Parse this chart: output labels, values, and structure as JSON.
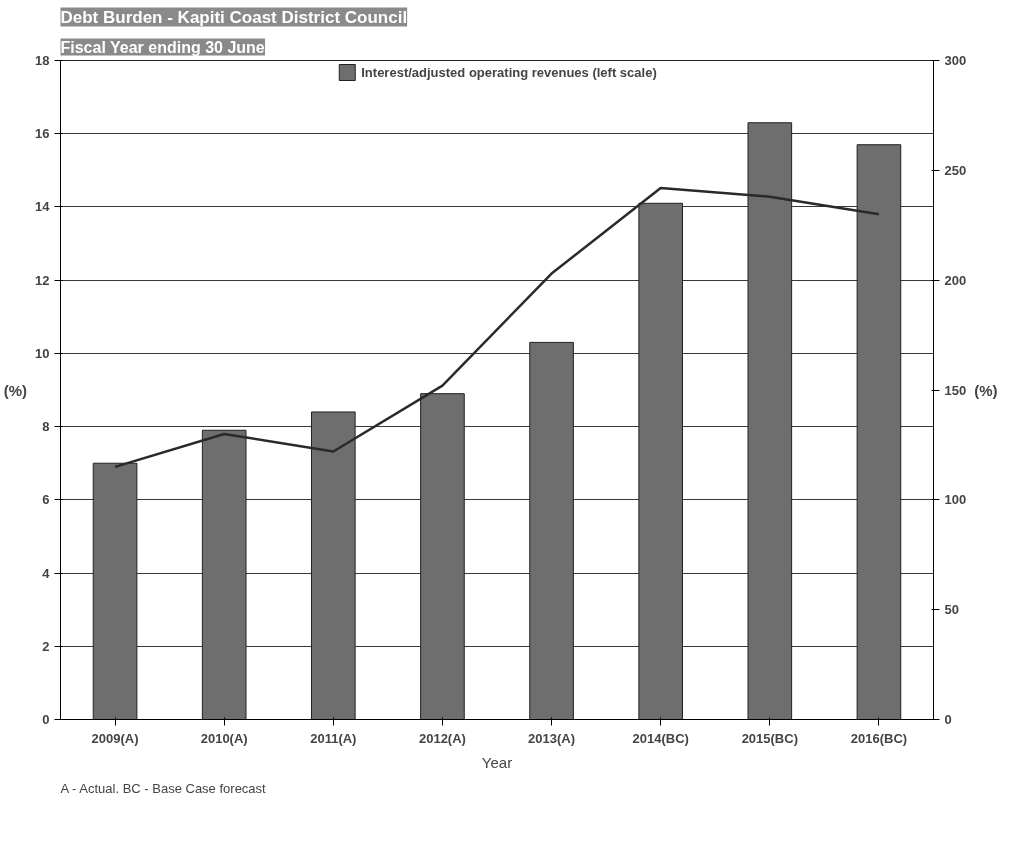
{
  "chart_data": {
    "type": "bar",
    "title": "Debt Burden - Kapiti Coast District Council",
    "subtitle": "Fiscal Year ending 30 June",
    "xlabel": "Year",
    "ylabel": "(%)",
    "y2label": "(%)",
    "categories": [
      "2009(A)",
      "2010(A)",
      "2011(A)",
      "2012(A)",
      "2013(A)",
      "2014(BC)",
      "2015(BC)",
      "2016(BC)"
    ],
    "series": [
      {
        "name": "Interest/adjusted operating revenues (left scale)",
        "color": "#6e6e6e",
        "values": [
          7.0,
          7.9,
          8.4,
          8.9,
          10.3,
          14.1,
          16.3,
          15.7
        ]
      },
      {
        "type": "line",
        "axis": "y2",
        "color": "#2a2a2a",
        "values": [
          115,
          130,
          122,
          152,
          203,
          242,
          238,
          230
        ]
      }
    ],
    "ylim": [
      0,
      18
    ],
    "yticks": [
      0,
      2,
      4,
      6,
      8,
      10,
      12,
      14,
      16,
      18
    ],
    "y2lim": [
      0,
      300
    ],
    "y2ticks": [
      0,
      50,
      100,
      150,
      200,
      250,
      300
    ],
    "grid": "y",
    "legend": "top",
    "annotations": [
      "A - Actual. BC - Base Case forecast"
    ]
  }
}
